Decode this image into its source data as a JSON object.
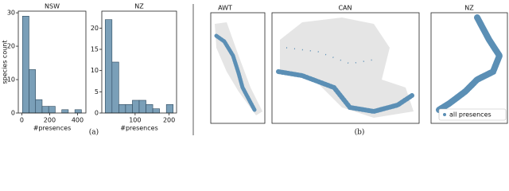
{
  "chart_data": [
    {
      "type": "histogram",
      "title": "NSW",
      "xlabel": "#presences",
      "ylabel": "species count",
      "bins": [
        5,
        52,
        99,
        146,
        193,
        240,
        287,
        334,
        381,
        428,
        475
      ],
      "counts": [
        29,
        13,
        4,
        2,
        2,
        0,
        1,
        0,
        1,
        0
      ],
      "color": "#7a9fb8",
      "xlim": [
        -25,
        460
      ],
      "xticks": [
        0,
        200,
        400
      ],
      "ylim": [
        0,
        30.5
      ],
      "yticks": [
        0,
        10,
        20,
        30
      ]
    },
    {
      "type": "histogram",
      "title": "NZ",
      "xlabel": "#presences",
      "bins": [
        12,
        32,
        52,
        72,
        92,
        112,
        132,
        152,
        172,
        192,
        212
      ],
      "counts": [
        22,
        12,
        2,
        2,
        3,
        3,
        2,
        1,
        0,
        2
      ],
      "color": "#7a9fb8",
      "xlim": [
        2,
        222
      ],
      "xticks": [
        100,
        200
      ],
      "ylim": [
        0,
        24
      ],
      "yticks": [
        0,
        5,
        10,
        15,
        20
      ]
    }
  ],
  "maps": {
    "titles": [
      "AWT",
      "CAN",
      "NZ"
    ],
    "legend": "all presences"
  },
  "captions": [
    "(a)",
    "(b)"
  ]
}
